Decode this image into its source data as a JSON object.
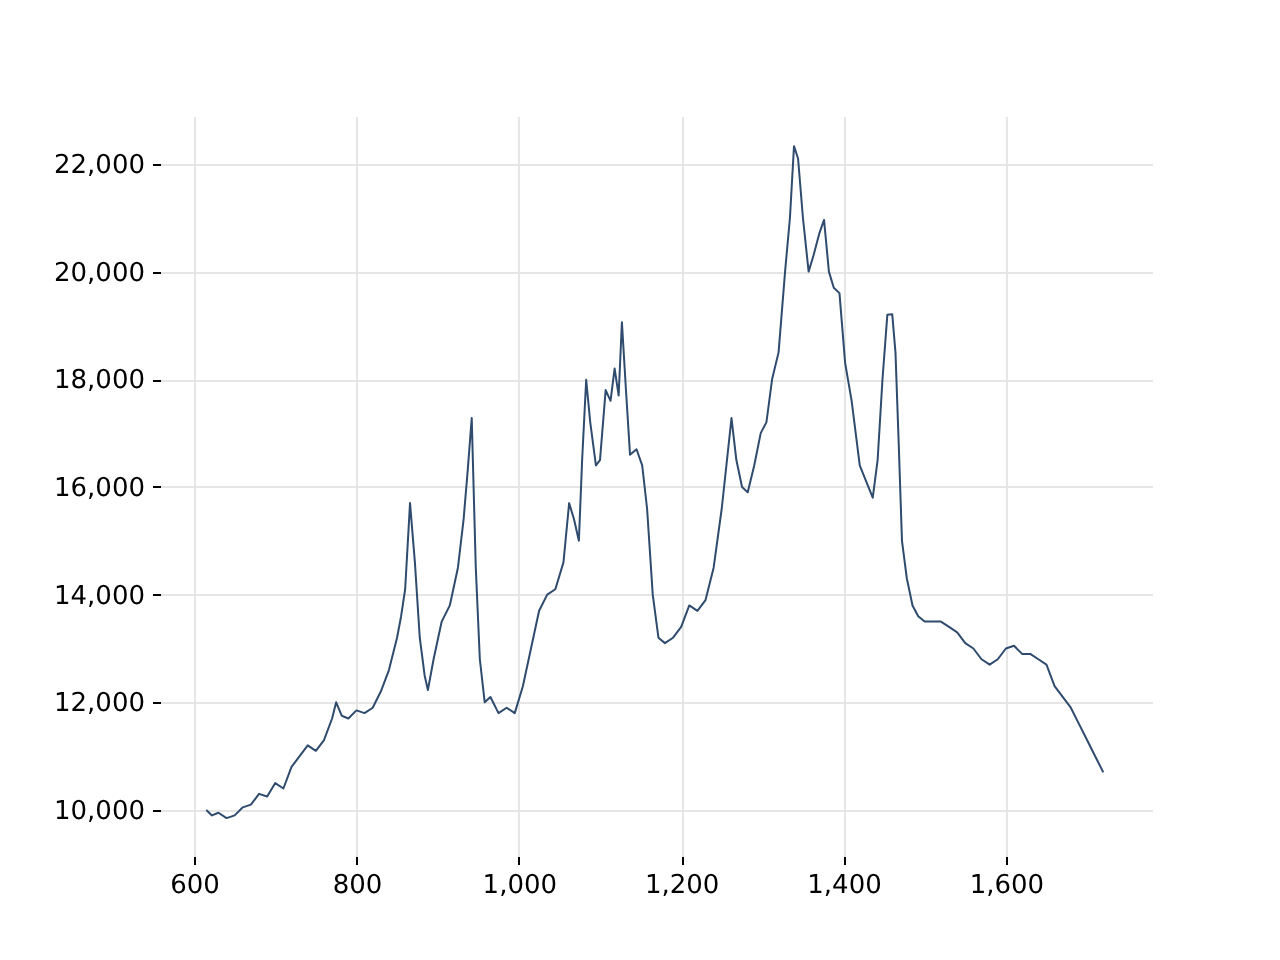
{
  "chart_data": {
    "type": "line",
    "x": [
      615,
      622,
      630,
      640,
      650,
      660,
      670,
      680,
      690,
      700,
      710,
      720,
      730,
      740,
      750,
      760,
      770,
      775,
      782,
      790,
      800,
      810,
      820,
      830,
      840,
      850,
      855,
      860,
      866,
      872,
      878,
      884,
      888,
      895,
      905,
      915,
      925,
      932,
      937,
      942,
      947,
      952,
      958,
      965,
      975,
      985,
      995,
      1005,
      1015,
      1025,
      1035,
      1045,
      1055,
      1062,
      1068,
      1074,
      1078,
      1083,
      1088,
      1095,
      1100,
      1107,
      1113,
      1118,
      1123,
      1127,
      1132,
      1137,
      1145,
      1152,
      1158,
      1165,
      1172,
      1180,
      1190,
      1200,
      1210,
      1220,
      1230,
      1240,
      1250,
      1262,
      1268,
      1275,
      1282,
      1290,
      1298,
      1305,
      1312,
      1320,
      1328,
      1334,
      1339,
      1344,
      1350,
      1357,
      1363,
      1370,
      1376,
      1382,
      1388,
      1395,
      1402,
      1410,
      1420,
      1428,
      1436,
      1442,
      1448,
      1454,
      1460,
      1464,
      1468,
      1472,
      1478,
      1485,
      1492,
      1500,
      1510,
      1520,
      1530,
      1540,
      1550,
      1560,
      1570,
      1580,
      1590,
      1600,
      1610,
      1620,
      1630,
      1640,
      1650,
      1660,
      1670,
      1680,
      1690,
      1700,
      1710,
      1720
    ],
    "series": [
      {
        "color": "#2f4b6e",
        "values": [
          10000,
          9900,
          9950,
          9850,
          9900,
          10050,
          10100,
          10300,
          10250,
          10500,
          10400,
          10800,
          11000,
          11200,
          11100,
          11300,
          11700,
          12000,
          11750,
          11700,
          11850,
          11800,
          11900,
          12200,
          12600,
          13200,
          13600,
          14100,
          15700,
          14600,
          13200,
          12500,
          12230,
          12800,
          13500,
          13800,
          14500,
          15400,
          16300,
          17280,
          14500,
          12800,
          12000,
          12100,
          11800,
          11900,
          11800,
          12300,
          13000,
          13700,
          14000,
          14100,
          14600,
          15700,
          15400,
          15000,
          16500,
          17990,
          17200,
          16400,
          16500,
          17800,
          17600,
          18200,
          17700,
          19060,
          17800,
          16600,
          16700,
          16400,
          15600,
          14000,
          13200,
          13100,
          13200,
          13400,
          13800,
          13700,
          13900,
          14500,
          15600,
          17280,
          16500,
          16000,
          15900,
          16400,
          17000,
          17200,
          18000,
          18500,
          20000,
          21000,
          22330,
          22100,
          21000,
          20000,
          20300,
          20700,
          20960,
          20000,
          19700,
          19600,
          18300,
          17600,
          16400,
          16100,
          15800,
          16500,
          18000,
          19200,
          19210,
          18500,
          16800,
          15000,
          14300,
          13800,
          13600,
          13500,
          13500,
          13500,
          13400,
          13300,
          13100,
          13000,
          12800,
          12700,
          12800,
          13000,
          13050,
          12900,
          12900,
          12800,
          12700,
          12300,
          12100,
          11900,
          11600,
          11300,
          11000,
          10700
        ]
      }
    ],
    "xlim": [
      558,
      1780
    ],
    "ylim": [
      9146,
      22890
    ],
    "xticks": [
      600,
      800,
      {
        "value": 1000,
        "label": "1,000"
      },
      {
        "value": 1200,
        "label": "1,200"
      },
      {
        "value": 1400,
        "label": "1,400"
      },
      {
        "value": 1600,
        "label": "1,600"
      }
    ],
    "yticks": [
      {
        "value": 10000,
        "label": "10,000"
      },
      {
        "value": 12000,
        "label": "12,000"
      },
      {
        "value": 14000,
        "label": "14,000"
      },
      {
        "value": 16000,
        "label": "16,000"
      },
      {
        "value": 18000,
        "label": "18,000"
      },
      {
        "value": 20000,
        "label": "20,000"
      },
      {
        "value": 22000,
        "label": "22,000"
      }
    ],
    "grid": true
  }
}
